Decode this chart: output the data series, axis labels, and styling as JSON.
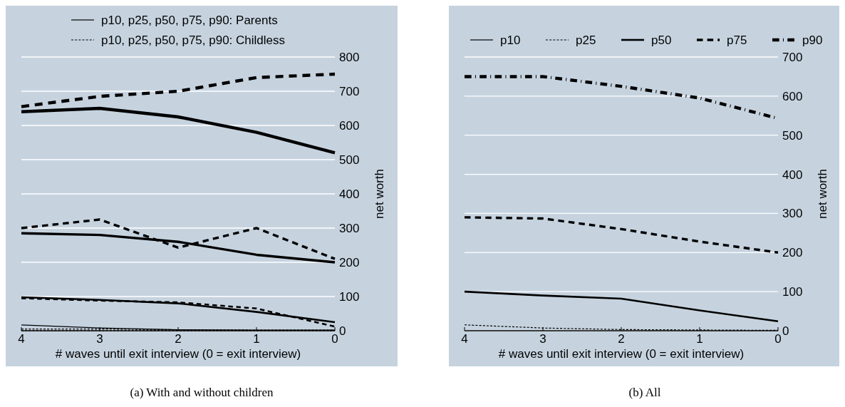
{
  "chart_data": [
    {
      "type": "line",
      "title": "(a) With and without children",
      "xlabel": "# waves until exit interview (0 = exit interview)",
      "ylabel": "net worth",
      "x": [
        4,
        3,
        2,
        1,
        0
      ],
      "xlim": [
        4,
        0
      ],
      "xticks": [
        4,
        3,
        2,
        1,
        0
      ],
      "ylim": [
        0,
        800
      ],
      "yticks": [
        0,
        100,
        200,
        300,
        400,
        500,
        600,
        700,
        800
      ],
      "grid": "y",
      "legend": "top",
      "marker": "none",
      "series": [
        {
          "name": "p10, p25, p50, p75, p90: Parents",
          "color": "#000000",
          "line_style": "solid",
          "values": [
            0,
            0,
            0,
            0,
            0
          ]
        },
        {
          "color": "#000000",
          "line_style": "solid",
          "values": [
            17,
            8,
            3,
            2,
            2
          ]
        },
        {
          "color": "#000000",
          "line_style": "solid",
          "values": [
            98,
            90,
            80,
            55,
            25
          ]
        },
        {
          "color": "#000000",
          "line_style": "solid",
          "values": [
            285,
            280,
            260,
            222,
            200
          ]
        },
        {
          "color": "#000000",
          "line_style": "solid",
          "values": [
            640,
            650,
            625,
            580,
            520
          ]
        },
        {
          "name": "p10, p25, p50, p75, p90: Childless",
          "color": "#000000",
          "line_style": "dashed",
          "values": [
            0,
            0,
            0,
            0,
            0
          ]
        },
        {
          "color": "#000000",
          "line_style": "dashed",
          "values": [
            5,
            5,
            3,
            2,
            2
          ]
        },
        {
          "color": "#000000",
          "line_style": "dashed",
          "values": [
            95,
            88,
            83,
            65,
            12
          ]
        },
        {
          "color": "#000000",
          "line_style": "dashed",
          "values": [
            300,
            325,
            243,
            300,
            210
          ]
        },
        {
          "color": "#000000",
          "line_style": "dashed",
          "values": [
            655,
            685,
            700,
            740,
            750
          ]
        }
      ]
    },
    {
      "type": "line",
      "title": "(b) All",
      "xlabel": "# waves until exit interview (0 = exit interview)",
      "ylabel": "net worth",
      "x": [
        4,
        3,
        2,
        1,
        0
      ],
      "xlim": [
        4,
        0
      ],
      "xticks": [
        4,
        3,
        2,
        1,
        0
      ],
      "ylim": [
        0,
        700
      ],
      "yticks": [
        0,
        100,
        200,
        300,
        400,
        500,
        600,
        700
      ],
      "grid": "y",
      "legend": "top",
      "marker": "none",
      "series": [
        {
          "name": "p10",
          "color": "#000000",
          "line_style": "solid",
          "values": [
            0,
            0,
            0,
            0,
            0
          ]
        },
        {
          "name": "p25",
          "color": "#000000",
          "line_style": "dashed",
          "values": [
            15,
            7,
            3,
            2,
            1
          ]
        },
        {
          "name": "p50",
          "color": "#000000",
          "line_style": "solid",
          "values": [
            100,
            90,
            82,
            52,
            24
          ]
        },
        {
          "name": "p75",
          "color": "#000000",
          "line_style": "dashed",
          "values": [
            290,
            287,
            260,
            228,
            200
          ]
        },
        {
          "name": "p90",
          "color": "#000000",
          "line_style": "dashdot",
          "values": [
            650,
            650,
            625,
            595,
            543
          ]
        }
      ]
    }
  ]
}
